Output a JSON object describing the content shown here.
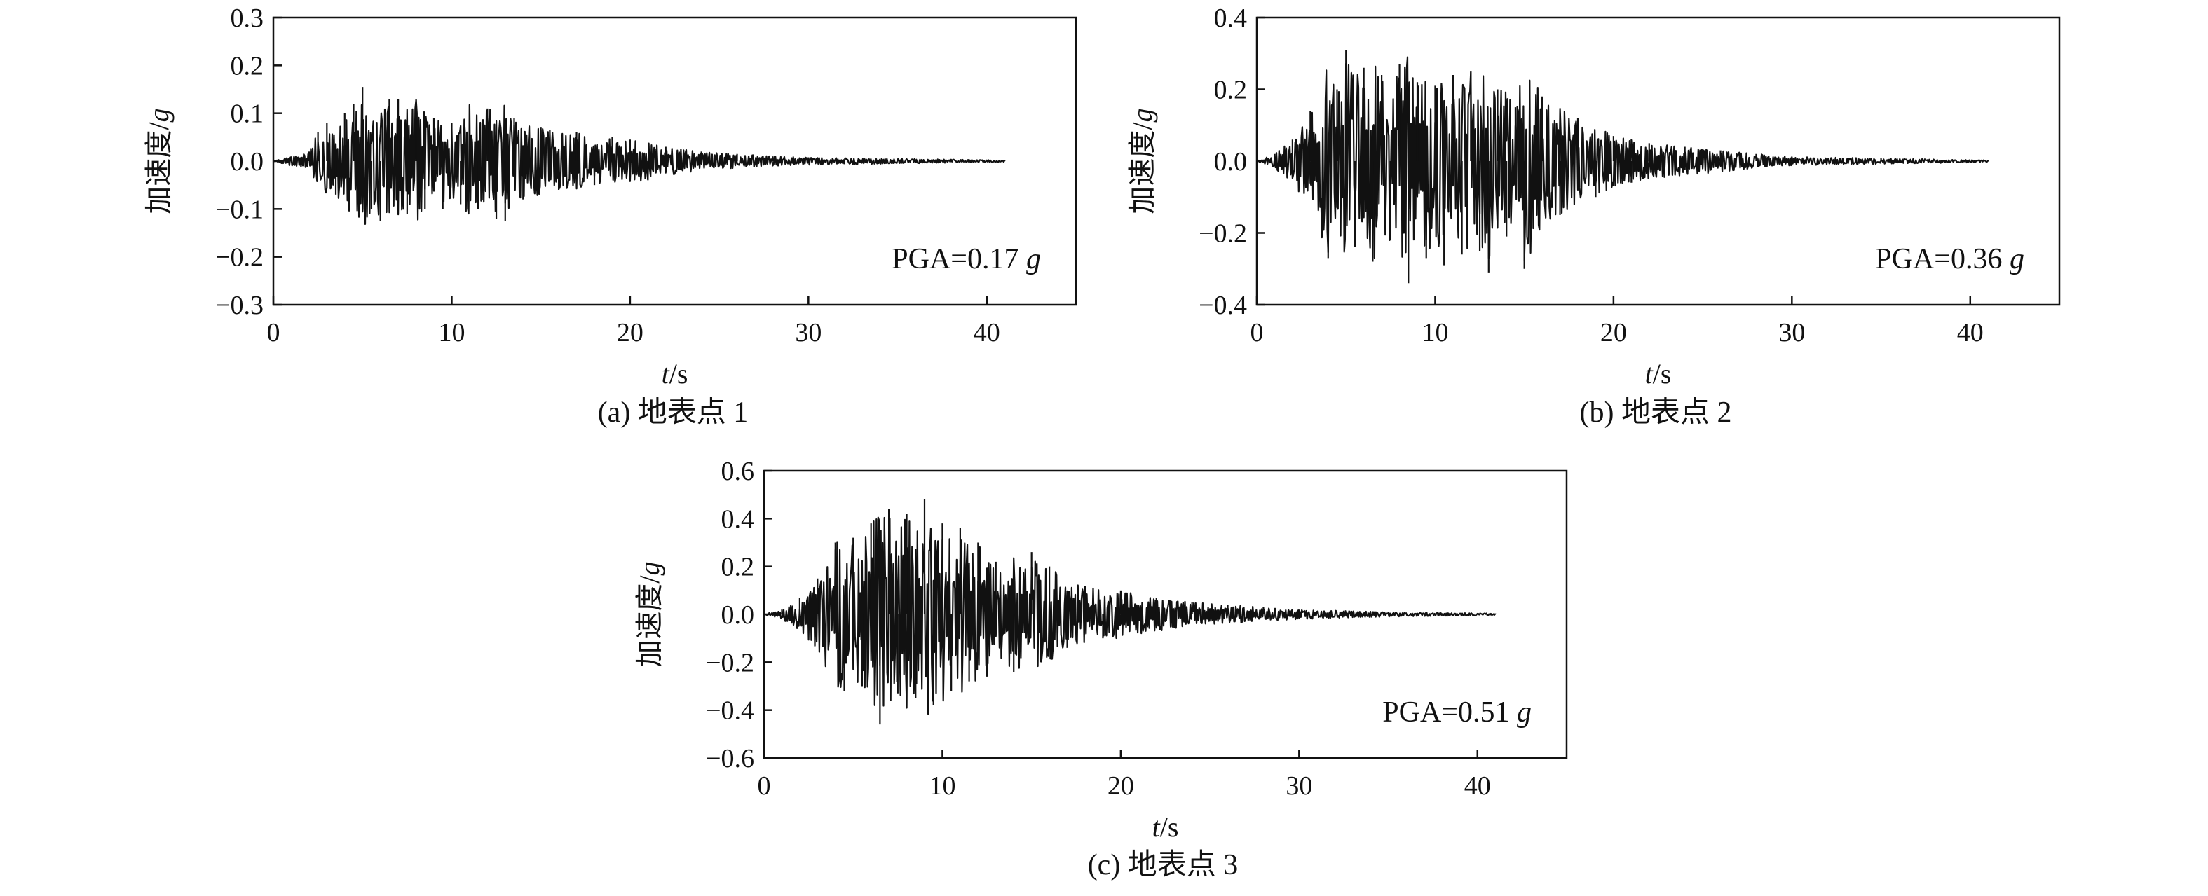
{
  "chart_data": [
    {
      "type": "line",
      "caption": "(a) 地表点 1",
      "ylabel": "加速度/g",
      "xlabel": "t/s",
      "annotation": "PGA=0.17 g",
      "xlim": [
        0,
        45
      ],
      "ylim": [
        -0.3,
        0.3
      ],
      "xticks": [
        "0",
        "10",
        "20",
        "30",
        "40"
      ],
      "yticks": [
        "−0.3",
        "−0.2",
        "−0.1",
        "0.0",
        "0.1",
        "0.2",
        "0.3"
      ],
      "duration": 41,
      "series": [
        {
          "x": [
            0,
            1,
            2,
            2.5,
            3,
            3.5,
            4,
            4.5,
            5,
            5.5,
            6,
            6.5,
            7,
            7.5,
            8,
            8.5,
            9,
            9.5,
            10,
            10.5,
            11,
            11.5,
            12,
            12.5,
            13,
            13.5,
            14,
            15,
            16,
            17,
            18,
            19,
            20,
            21,
            22,
            24,
            26,
            28,
            30,
            35,
            41
          ],
          "y": [
            0,
            0.01,
            0.02,
            0.06,
            0.08,
            -0.07,
            0.1,
            0.12,
            0.155,
            -0.1,
            -0.125,
            0.13,
            0.13,
            -0.11,
            0.13,
            -0.1,
            0.09,
            -0.1,
            0.08,
            -0.09,
            0.12,
            -0.1,
            0.11,
            -0.12,
            -0.125,
            0.09,
            -0.08,
            0.07,
            -0.06,
            0.06,
            -0.05,
            0.05,
            0.045,
            -0.04,
            0.03,
            0.02,
            0.015,
            0.01,
            0.008,
            0.005,
            0.002
          ]
        }
      ]
    },
    {
      "type": "line",
      "caption": "(b) 地表点 2",
      "ylabel": "加速度/g",
      "xlabel": "t/s",
      "annotation": "PGA=0.36 g",
      "xlim": [
        0,
        45
      ],
      "ylim": [
        -0.4,
        0.4
      ],
      "xticks": [
        "0",
        "10",
        "20",
        "30",
        "40"
      ],
      "yticks": [
        "−0.4",
        "−0.2",
        "0.0",
        "0.2",
        "0.4"
      ],
      "duration": 41,
      "series": [
        {
          "x": [
            0,
            1,
            2,
            3,
            4,
            4.5,
            5,
            5.5,
            6,
            6.5,
            7,
            7.5,
            8,
            8.5,
            9,
            9.5,
            10,
            10.5,
            11,
            11.5,
            12,
            12.5,
            13,
            13.5,
            14,
            14.5,
            15,
            16,
            17,
            18,
            19,
            20,
            21,
            22,
            24,
            26,
            28,
            30,
            35,
            41
          ],
          "y": [
            0,
            0.02,
            0.06,
            0.14,
            -0.27,
            0.2,
            0.31,
            -0.24,
            0.26,
            -0.28,
            0.24,
            -0.22,
            0.27,
            -0.34,
            0.22,
            -0.27,
            0.21,
            -0.29,
            0.24,
            -0.26,
            0.25,
            -0.25,
            -0.31,
            0.2,
            -0.21,
            0.15,
            -0.3,
            0.18,
            -0.15,
            0.12,
            -0.1,
            0.07,
            -0.06,
            0.05,
            0.04,
            0.03,
            0.02,
            0.012,
            0.008,
            0.003
          ]
        }
      ]
    },
    {
      "type": "line",
      "caption": "(c) 地表点 3",
      "ylabel": "加速度/g",
      "xlabel": "t/s",
      "annotation": "PGA=0.51 g",
      "xlim": [
        0,
        45
      ],
      "ylim": [
        -0.6,
        0.6
      ],
      "xticks": [
        "0",
        "10",
        "20",
        "30",
        "40"
      ],
      "yticks": [
        "−0.6",
        "−0.4",
        "−0.2",
        "0.0",
        "0.2",
        "0.4",
        "0.6"
      ],
      "duration": 41,
      "series": [
        {
          "x": [
            0,
            1,
            2,
            3,
            4,
            4.5,
            5,
            5.5,
            6,
            6.5,
            7,
            7.5,
            8,
            8.5,
            9,
            9.5,
            10,
            10.5,
            11,
            11.5,
            12,
            12.5,
            13,
            14,
            15,
            15.5,
            16,
            17,
            18,
            19,
            20,
            22,
            24,
            26,
            28,
            30,
            35,
            41
          ],
          "y": [
            0,
            0.02,
            0.07,
            0.15,
            0.3,
            -0.32,
            0.32,
            -0.3,
            0.38,
            -0.46,
            0.44,
            -0.33,
            0.42,
            -0.35,
            0.48,
            -0.38,
            0.38,
            -0.32,
            0.36,
            -0.28,
            0.3,
            -0.26,
            0.22,
            -0.24,
            0.26,
            -0.2,
            0.2,
            -0.14,
            0.12,
            -0.1,
            0.1,
            0.07,
            0.05,
            0.04,
            0.03,
            0.02,
            0.01,
            0.004
          ]
        }
      ]
    }
  ]
}
